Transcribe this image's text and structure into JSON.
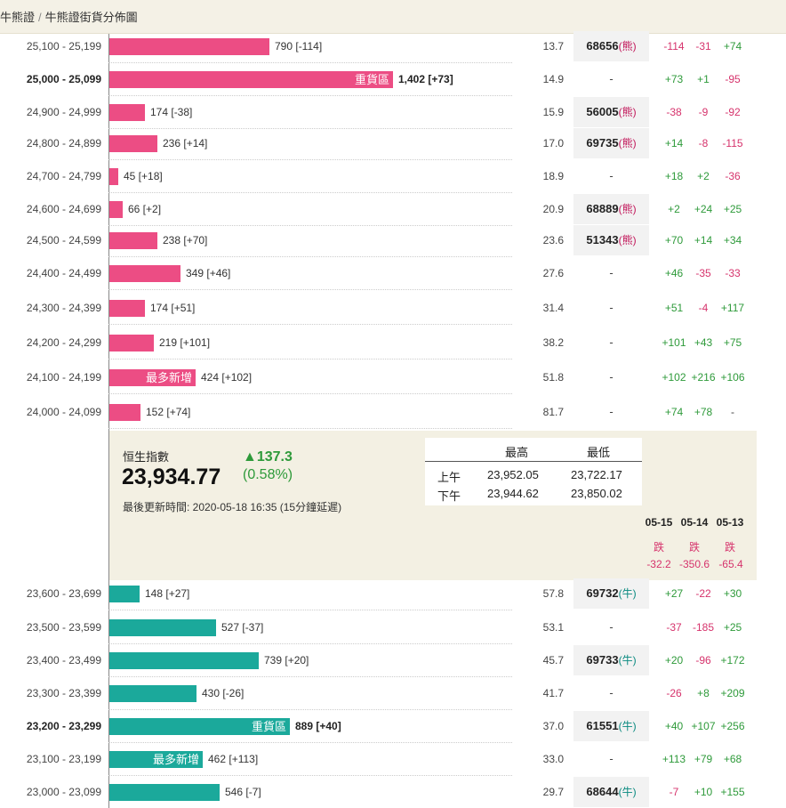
{
  "breadcrumb": {
    "part1": "牛熊證",
    "sep": "/",
    "part2": "牛熊證街貨分佈圖"
  },
  "bear_rows": [
    {
      "range": "25,100 - 25,199",
      "value": "790 [-114]",
      "pct": "13.7",
      "code": "68656",
      "tag": "(熊)",
      "chg": [
        "-114",
        "-31",
        "+74"
      ]
    },
    {
      "range": "25,000 - 25,099",
      "value": "1,402 [+73]",
      "inlabel": "重貨區",
      "pct": "14.9",
      "code": "-",
      "tag": "",
      "chg": [
        "+73",
        "+1",
        "-95"
      ]
    },
    {
      "range": "24,900 - 24,999",
      "value": "174 [-38]",
      "pct": "15.9",
      "code": "56005",
      "tag": "(熊)",
      "chg": [
        "-38",
        "-9",
        "-92"
      ]
    },
    {
      "range": "24,800 - 24,899",
      "value": "236 [+14]",
      "pct": "17.0",
      "code": "69735",
      "tag": "(熊)",
      "chg": [
        "+14",
        "-8",
        "-115"
      ]
    },
    {
      "range": "24,700 - 24,799",
      "value": "45 [+18]",
      "pct": "18.9",
      "code": "-",
      "tag": "",
      "chg": [
        "+18",
        "+2",
        "-36"
      ]
    },
    {
      "range": "24,600 - 24,699",
      "value": "66 [+2]",
      "pct": "20.9",
      "code": "68889",
      "tag": "(熊)",
      "chg": [
        "+2",
        "+24",
        "+25"
      ]
    },
    {
      "range": "24,500 - 24,599",
      "value": "238 [+70]",
      "pct": "23.6",
      "code": "51343",
      "tag": "(熊)",
      "chg": [
        "+70",
        "+14",
        "+34"
      ]
    },
    {
      "range": "24,400 - 24,499",
      "value": "349 [+46]",
      "pct": "27.6",
      "code": "-",
      "tag": "",
      "chg": [
        "+46",
        "-35",
        "-33"
      ]
    },
    {
      "range": "24,300 - 24,399",
      "value": "174 [+51]",
      "pct": "31.4",
      "code": "-",
      "tag": "",
      "chg": [
        "+51",
        "-4",
        "+117"
      ]
    },
    {
      "range": "24,200 - 24,299",
      "value": "219 [+101]",
      "pct": "38.2",
      "code": "-",
      "tag": "",
      "chg": [
        "+101",
        "+43",
        "+75"
      ]
    },
    {
      "range": "24,100 - 24,199",
      "value": "424 [+102]",
      "inlabel": "最多新增",
      "pct": "51.8",
      "code": "-",
      "tag": "",
      "chg": [
        "+102",
        "+216",
        "+106"
      ]
    },
    {
      "range": "24,000 - 24,099",
      "value": "152 [+74]",
      "pct": "81.7",
      "code": "-",
      "tag": "",
      "chg": [
        "+74",
        "+78",
        "-"
      ]
    }
  ],
  "index": {
    "name": "恒生指數",
    "value": "23,934.77",
    "change": "▲137.3",
    "change_pct": "(0.58%)",
    "updated": "最後更新時間: 2020-05-18 16:35 (15分鐘延遲)",
    "hl_headers": [
      "最高",
      "最低"
    ],
    "hl_rows": [
      {
        "label": "上午",
        "high": "23,952.05",
        "low": "23,722.17"
      },
      {
        "label": "下午",
        "high": "23,944.62",
        "low": "23,850.02"
      }
    ],
    "history": [
      {
        "date": "05-15",
        "dir": "跌",
        "value": "-32.2"
      },
      {
        "date": "05-14",
        "dir": "跌",
        "value": "-350.6"
      },
      {
        "date": "05-13",
        "dir": "跌",
        "value": "-65.4"
      }
    ]
  },
  "bull_rows": [
    {
      "range": "23,600 - 23,699",
      "value": "148 [+27]",
      "pct": "57.8",
      "code": "69732",
      "tag": "(牛)",
      "chg": [
        "+27",
        "-22",
        "+30"
      ]
    },
    {
      "range": "23,500 - 23,599",
      "value": "527 [-37]",
      "pct": "53.1",
      "code": "-",
      "tag": "",
      "chg": [
        "-37",
        "-185",
        "+25"
      ]
    },
    {
      "range": "23,400 - 23,499",
      "value": "739 [+20]",
      "pct": "45.7",
      "code": "69733",
      "tag": "(牛)",
      "chg": [
        "+20",
        "-96",
        "+172"
      ]
    },
    {
      "range": "23,300 - 23,399",
      "value": "430 [-26]",
      "pct": "41.7",
      "code": "-",
      "tag": "",
      "chg": [
        "-26",
        "+8",
        "+209"
      ]
    },
    {
      "range": "23,200 - 23,299",
      "value": "889 [+40]",
      "inlabel": "重貨區",
      "pct": "37.0",
      "code": "61551",
      "tag": "(牛)",
      "chg": [
        "+40",
        "+107",
        "+256"
      ]
    },
    {
      "range": "23,100 - 23,199",
      "value": "462 [+113]",
      "inlabel": "最多新增",
      "pct": "33.0",
      "code": "-",
      "tag": "",
      "chg": [
        "+113",
        "+79",
        "+68"
      ]
    },
    {
      "range": "23,000 - 23,099",
      "value": "546 [-7]",
      "pct": "29.7",
      "code": "68644",
      "tag": "(牛)",
      "chg": [
        "-7",
        "+10",
        "+155"
      ]
    }
  ],
  "colors": {
    "bear": "#ec4d84",
    "bull": "#1ba99b",
    "up": "#2e9a3a",
    "down": "#d6336c"
  }
}
